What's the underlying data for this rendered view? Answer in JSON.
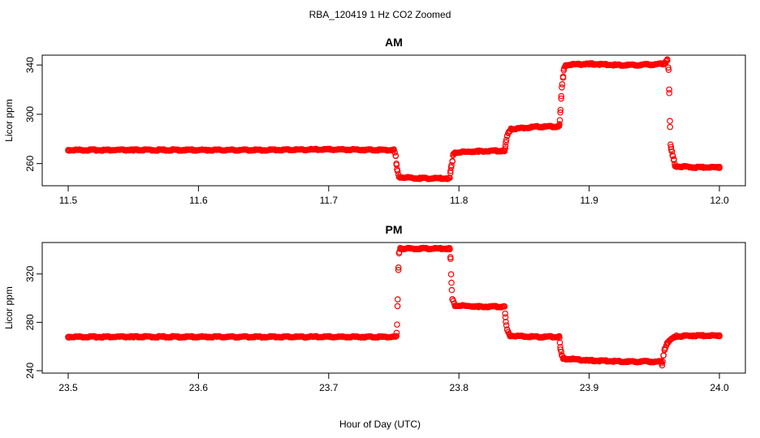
{
  "figure": {
    "title": "RBA_120419  1 Hz CO2 Zoomed",
    "xlabel": "Hour of Day (UTC)"
  },
  "chart_data": [
    {
      "type": "scatter",
      "title": "AM",
      "ylabel": "Licor ppm",
      "xlim": [
        11.5,
        12.0
      ],
      "ylim": [
        242,
        348
      ],
      "x_ticks": [
        11.5,
        11.6,
        11.7,
        11.8,
        11.9,
        12.0
      ],
      "x_tick_labels": [
        "11.5",
        "11.6",
        "11.7",
        "11.8",
        "11.9",
        "12.0"
      ],
      "y_ticks": [
        260,
        300,
        340
      ],
      "y_tick_labels": [
        "260",
        "300",
        "340"
      ],
      "grid": false,
      "marker_color": "#ff0000",
      "marker": "open-circle",
      "series": [
        {
          "points": [
            [
              11.5,
              271
            ],
            [
              11.55,
              271
            ],
            [
              11.6,
              271
            ],
            [
              11.65,
              271
            ],
            [
              11.7,
              271.5
            ],
            [
              11.75,
              271
            ],
            [
              11.7515,
              266
            ],
            [
              11.752,
              260
            ],
            [
              11.7525,
              255
            ],
            [
              11.754,
              249
            ],
            [
              11.77,
              248
            ],
            [
              11.793,
              248
            ],
            [
              11.7935,
              253
            ],
            [
              11.794,
              257
            ],
            [
              11.795,
              262
            ],
            [
              11.7955,
              267
            ],
            [
              11.797,
              269
            ],
            [
              11.815,
              270
            ],
            [
              11.835,
              270.5
            ],
            [
              11.8355,
              272
            ],
            [
              11.836,
              277
            ],
            [
              11.837,
              282
            ],
            [
              11.838,
              285
            ],
            [
              11.84,
              288
            ],
            [
              11.86,
              290
            ],
            [
              11.877,
              290
            ],
            [
              11.8775,
              295
            ],
            [
              11.878,
              304
            ],
            [
              11.8785,
              313
            ],
            [
              11.879,
              322
            ],
            [
              11.88,
              330
            ],
            [
              11.8805,
              336
            ],
            [
              11.882,
              340
            ],
            [
              11.9,
              341
            ],
            [
              11.92,
              340
            ],
            [
              11.94,
              340
            ],
            [
              11.958,
              341
            ],
            [
              11.959,
              343
            ],
            [
              11.96,
              344
            ],
            [
              11.961,
              336
            ],
            [
              11.9615,
              317
            ],
            [
              11.962,
              295
            ],
            [
              11.9625,
              276
            ],
            [
              11.963,
              272
            ],
            [
              11.9635,
              270
            ],
            [
              11.964,
              267
            ],
            [
              11.965,
              263
            ],
            [
              11.966,
              258
            ],
            [
              11.98,
              257
            ],
            [
              12.0,
              257
            ]
          ]
        }
      ]
    },
    {
      "type": "scatter",
      "title": "PM",
      "ylabel": "Licor ppm",
      "xlim": [
        23.5,
        24.0
      ],
      "ylim": [
        238,
        346
      ],
      "x_ticks": [
        23.5,
        23.6,
        23.7,
        23.8,
        23.9,
        24.0
      ],
      "x_tick_labels": [
        "23.5",
        "23.6",
        "23.7",
        "23.8",
        "23.9",
        "24.0"
      ],
      "y_ticks": [
        240,
        280,
        320
      ],
      "y_tick_labels": [
        "240",
        "280",
        "320"
      ],
      "grid": false,
      "marker_color": "#ff0000",
      "marker": "open-circle",
      "series": [
        {
          "points": [
            [
              23.5,
              268
            ],
            [
              23.55,
              268
            ],
            [
              23.6,
              268
            ],
            [
              23.65,
              268
            ],
            [
              23.7,
              268
            ],
            [
              23.752,
              268
            ],
            [
              23.7525,
              278
            ],
            [
              23.753,
              299
            ],
            [
              23.7535,
              323
            ],
            [
              23.754,
              337
            ],
            [
              23.755,
              341
            ],
            [
              23.775,
              341
            ],
            [
              23.793,
              341
            ],
            [
              23.7935,
              334
            ],
            [
              23.794,
              320
            ],
            [
              23.7945,
              307
            ],
            [
              23.795,
              299
            ],
            [
              23.797,
              294
            ],
            [
              23.815,
              293
            ],
            [
              23.835,
              293
            ],
            [
              23.8355,
              287
            ],
            [
              23.836,
              280
            ],
            [
              23.837,
              274
            ],
            [
              23.839,
              269
            ],
            [
              23.86,
              268
            ],
            [
              23.877,
              268
            ],
            [
              23.8775,
              263
            ],
            [
              23.878,
              258
            ],
            [
              23.879,
              253
            ],
            [
              23.88,
              250
            ],
            [
              23.9,
              248.5
            ],
            [
              23.93,
              247.5
            ],
            [
              23.955,
              247.5
            ],
            [
              23.956,
              245
            ],
            [
              23.957,
              252
            ],
            [
              23.958,
              258
            ],
            [
              23.96,
              263
            ],
            [
              23.963,
              266
            ],
            [
              23.967,
              268.5
            ],
            [
              23.98,
              269
            ],
            [
              24.0,
              269
            ]
          ]
        }
      ]
    }
  ]
}
